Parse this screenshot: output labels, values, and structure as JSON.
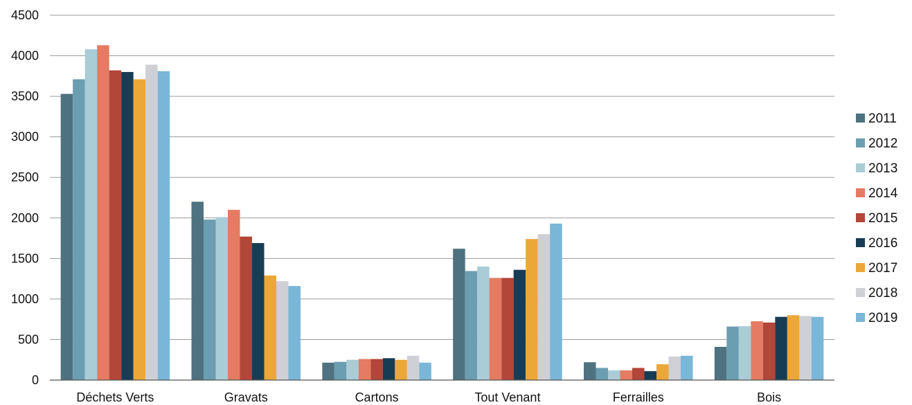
{
  "chart_data": {
    "type": "bar",
    "categories": [
      "Déchets Verts",
      "Gravats",
      "Cartons",
      "Tout Venant",
      "Ferrailles",
      "Bois"
    ],
    "series": [
      {
        "name": "2011",
        "color": "#4f7280",
        "values": [
          3530,
          2200,
          215,
          1620,
          220,
          410
        ]
      },
      {
        "name": "2012",
        "color": "#6b9eb0",
        "values": [
          3710,
          1980,
          225,
          1345,
          150,
          660
        ]
      },
      {
        "name": "2013",
        "color": "#a9ccd6",
        "values": [
          4080,
          2010,
          250,
          1400,
          120,
          665
        ]
      },
      {
        "name": "2014",
        "color": "#e47b62",
        "values": [
          4130,
          2100,
          260,
          1260,
          120,
          725
        ]
      },
      {
        "name": "2015",
        "color": "#b24638",
        "values": [
          3820,
          1770,
          260,
          1260,
          150,
          710
        ]
      },
      {
        "name": "2016",
        "color": "#173d55",
        "values": [
          3800,
          1690,
          270,
          1360,
          110,
          780
        ]
      },
      {
        "name": "2017",
        "color": "#eba737",
        "values": [
          3710,
          1290,
          250,
          1740,
          195,
          800
        ]
      },
      {
        "name": "2018",
        "color": "#cfcfd6",
        "values": [
          3890,
          1220,
          300,
          1800,
          290,
          790
        ]
      },
      {
        "name": "2019",
        "color": "#7ab6d8",
        "values": [
          3810,
          1160,
          215,
          1930,
          300,
          780
        ]
      }
    ],
    "ylim": [
      0,
      4500
    ],
    "yticks": [
      0,
      500,
      1000,
      1500,
      2000,
      2500,
      3000,
      3500,
      4000,
      4500
    ],
    "grid": true,
    "legend_position": "right",
    "title": "",
    "xlabel": "",
    "ylabel": ""
  }
}
